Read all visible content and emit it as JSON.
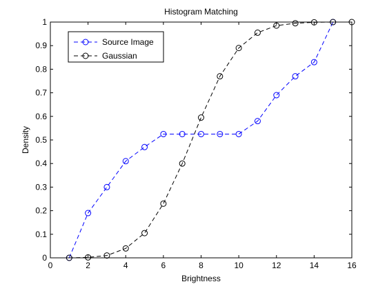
{
  "chart_data": {
    "type": "line",
    "title": "Histogram Matching",
    "xlabel": "Brightness",
    "ylabel": "Density",
    "xlim": [
      0,
      16
    ],
    "ylim": [
      0,
      1
    ],
    "xticks": [
      "0",
      "2",
      "4",
      "6",
      "8",
      "10",
      "12",
      "14",
      "16"
    ],
    "yticks": [
      "0",
      "0.1",
      "0.2",
      "0.3",
      "0.4",
      "0.5",
      "0.6",
      "0.7",
      "0.8",
      "0.9",
      "1"
    ],
    "grid": false,
    "legend": "top-left",
    "series": [
      {
        "name": "Source Image",
        "color": "#0000ff",
        "marker": "circle",
        "linestyle": "dashed",
        "x": [
          1,
          2,
          3,
          4,
          5,
          6,
          7,
          8,
          9,
          10,
          11,
          12,
          13,
          14,
          15
        ],
        "y": [
          0.0,
          0.19,
          0.3,
          0.41,
          0.47,
          0.525,
          0.525,
          0.525,
          0.525,
          0.525,
          0.58,
          0.69,
          0.77,
          0.83,
          1.0
        ]
      },
      {
        "name": "Gaussian",
        "color": "#000000",
        "marker": "circle",
        "linestyle": "dashed",
        "x": [
          1,
          2,
          3,
          4,
          5,
          6,
          7,
          8,
          9,
          10,
          11,
          12,
          13,
          14,
          15,
          16
        ],
        "y": [
          0.0,
          0.002,
          0.01,
          0.04,
          0.105,
          0.23,
          0.4,
          0.595,
          0.77,
          0.89,
          0.955,
          0.985,
          0.995,
          0.999,
          1.0,
          1.0
        ]
      }
    ]
  }
}
